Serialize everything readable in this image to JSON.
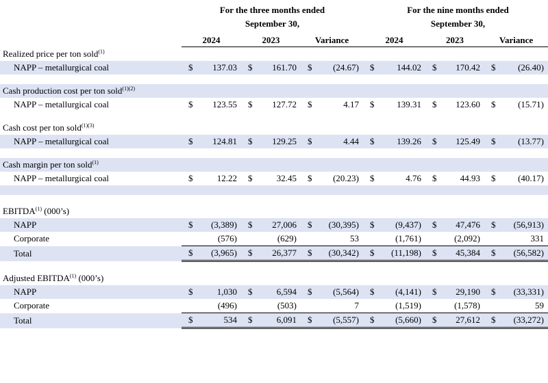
{
  "header": {
    "three_months": {
      "line1": "For the three months ended",
      "line2": "September 30,"
    },
    "nine_months": {
      "line1": "For the nine months ended",
      "line2": "September 30,"
    },
    "columns": [
      "2024",
      "2023",
      "Variance",
      "2024",
      "2023",
      "Variance"
    ]
  },
  "sections": [
    {
      "title": "Realized price per ton sold",
      "notes": "(1)",
      "suffix": "",
      "rows": [
        {
          "label": "NAPP – metallurgical coal",
          "values": [
            "137.03",
            "161.70",
            "(24.67)",
            "144.02",
            "170.42",
            "(26.40)"
          ]
        }
      ]
    },
    {
      "title": "Cash production cost per ton sold",
      "notes": "(1)(2)",
      "suffix": "",
      "rows": [
        {
          "label": "NAPP – metallurgical coal",
          "values": [
            "123.55",
            "127.72",
            "4.17",
            "139.31",
            "123.60",
            "(15.71)"
          ]
        }
      ]
    },
    {
      "title": "Cash cost per ton sold",
      "notes": "(1)(3)",
      "suffix": "",
      "rows": [
        {
          "label": "NAPP – metallurgical coal",
          "values": [
            "124.81",
            "129.25",
            "4.44",
            "139.26",
            "125.49",
            "(13.77)"
          ]
        }
      ]
    },
    {
      "title": "Cash margin per ton sold",
      "notes": "(1)",
      "suffix": "",
      "rows": [
        {
          "label": "NAPP – metallurgical coal",
          "values": [
            "12.22",
            "32.45",
            "(20.23)",
            "4.76",
            "44.93",
            "(40.17)"
          ]
        }
      ]
    },
    {
      "title": "EBITDA",
      "notes": "(1)",
      "suffix": " (000’s)",
      "rows": [
        {
          "label": "NAPP",
          "values": [
            "(3,389)",
            "27,006",
            "(30,395)",
            "(9,437)",
            "47,476",
            "(56,913)"
          ]
        },
        {
          "label": "Corporate",
          "values": [
            "(576)",
            "(629)",
            "53",
            "(1,761)",
            "(2,092)",
            "331"
          ]
        },
        {
          "label": "Total",
          "values": [
            "(3,965)",
            "26,377",
            "(30,342)",
            "(11,198)",
            "45,384",
            "(56,582)"
          ]
        }
      ]
    },
    {
      "title": "Adjusted EBITDA",
      "notes": "(1)",
      "suffix": " (000’s)",
      "rows": [
        {
          "label": "NAPP",
          "values": [
            "1,030",
            "6,594",
            "(5,564)",
            "(4,141)",
            "29,190",
            "(33,331)"
          ]
        },
        {
          "label": "Corporate",
          "values": [
            "(496)",
            "(503)",
            "7",
            "(1,519)",
            "(1,578)",
            "59"
          ]
        },
        {
          "label": "Total",
          "values": [
            "534",
            "6,091",
            "(5,557)",
            "(5,660)",
            "27,612",
            "(33,272)"
          ]
        }
      ]
    }
  ],
  "currency_symbol": "$"
}
